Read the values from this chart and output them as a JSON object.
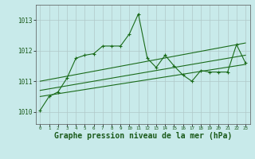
{
  "background_color": "#c8eaea",
  "grid_color": "#b0c8c8",
  "line_color": "#1a6b1a",
  "xlabel": "Graphe pression niveau de la mer (hPa)",
  "xlabel_fontsize": 7.0,
  "ylabel_ticks": [
    1010,
    1011,
    1012,
    1013
  ],
  "xlim": [
    -0.5,
    23.5
  ],
  "ylim": [
    1009.6,
    1013.5
  ],
  "x_hours": [
    0,
    1,
    2,
    3,
    4,
    5,
    6,
    7,
    8,
    9,
    10,
    11,
    12,
    13,
    14,
    15,
    16,
    17,
    18,
    19,
    20,
    21,
    22,
    23
  ],
  "series1": [
    1010.05,
    1010.5,
    1010.65,
    1011.1,
    1011.75,
    1011.85,
    1011.9,
    1012.15,
    1012.15,
    1012.15,
    1012.55,
    1013.2,
    1011.75,
    1011.45,
    1011.85,
    1011.5,
    1011.2,
    1011.0,
    1011.35,
    1011.3,
    1011.3,
    1011.3,
    1012.2,
    1011.6
  ],
  "trend_lines": [
    [
      1010.5,
      1011.55
    ],
    [
      1010.7,
      1011.85
    ],
    [
      1011.0,
      1012.25
    ]
  ],
  "figsize": [
    3.2,
    2.0
  ],
  "dpi": 100
}
